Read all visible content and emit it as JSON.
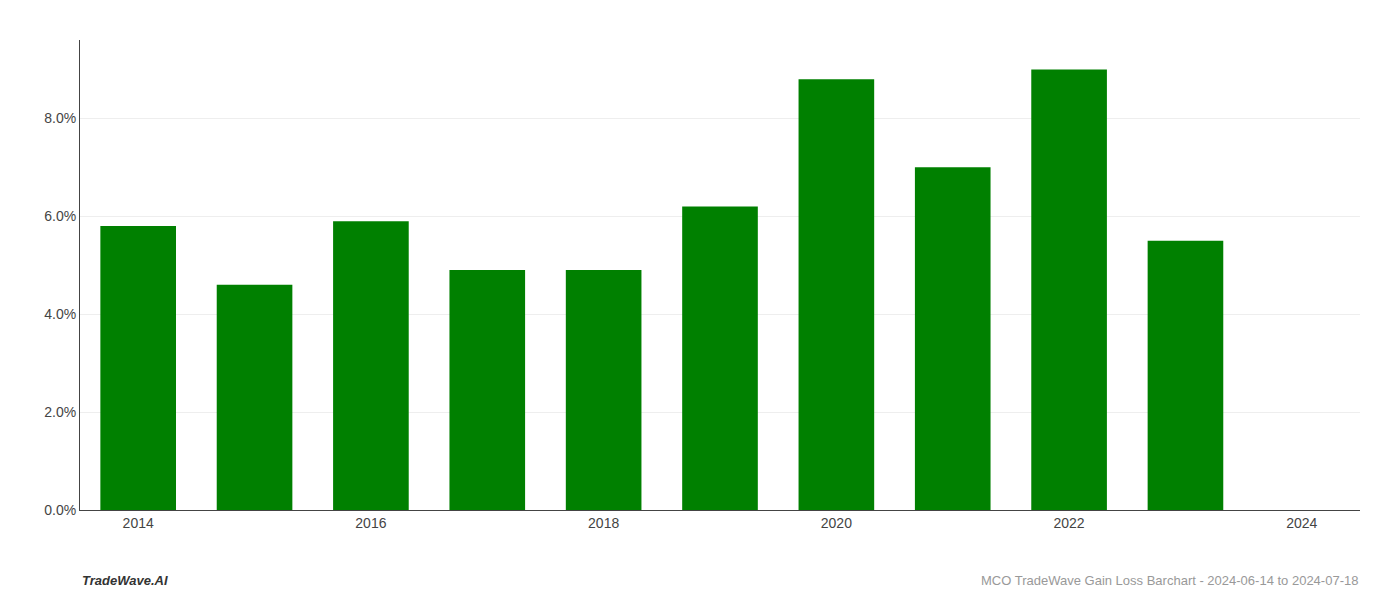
{
  "chart_data": {
    "type": "bar",
    "x": [
      2014,
      2015,
      2016,
      2017,
      2018,
      2019,
      2020,
      2021,
      2022,
      2023
    ],
    "values": [
      0.058,
      0.046,
      0.059,
      0.049,
      0.049,
      0.062,
      0.088,
      0.07,
      0.09,
      0.055
    ],
    "color": "#008000",
    "xlim": [
      2013.5,
      2024.5
    ],
    "xticks": [
      2014,
      2016,
      2018,
      2020,
      2022,
      2024
    ],
    "ylim": [
      0.0,
      0.096
    ],
    "yticks": [
      {
        "value": 0.0,
        "label": "0.0%"
      },
      {
        "value": 0.02,
        "label": "2.0%"
      },
      {
        "value": 0.04,
        "label": "4.0%"
      },
      {
        "value": 0.06,
        "label": "6.0%"
      },
      {
        "value": 0.08,
        "label": "8.0%"
      }
    ],
    "grid": true,
    "annotations": [
      "TradeWave.AI",
      "MCO TradeWave Gain Loss Barchart - 2024-06-14 to 2024-07-18"
    ]
  }
}
